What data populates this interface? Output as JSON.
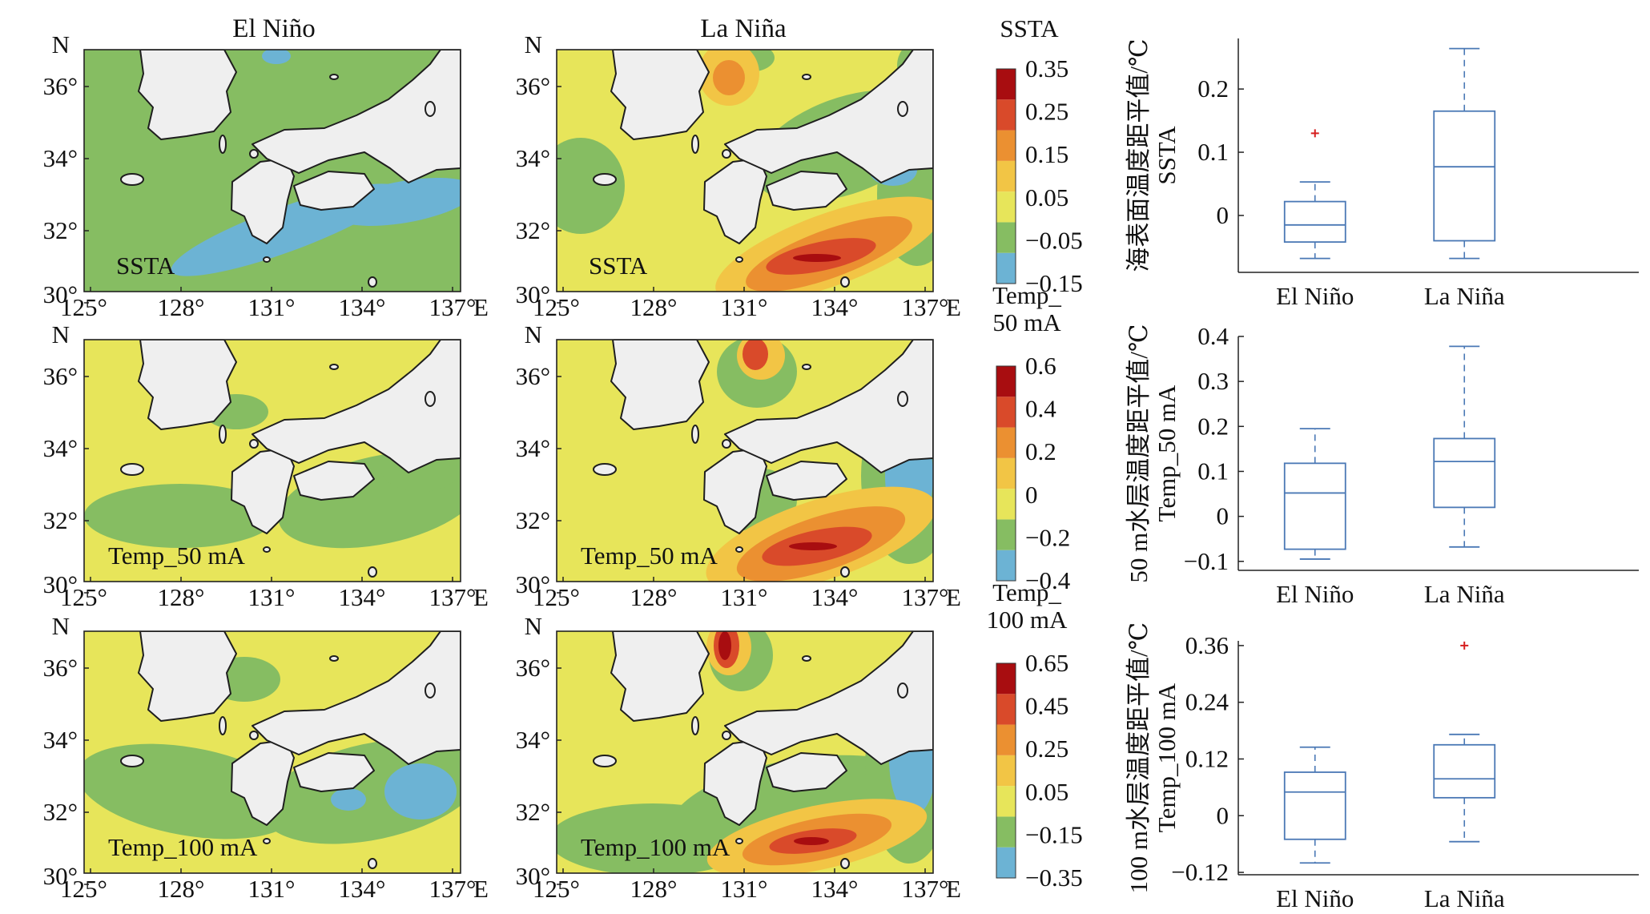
{
  "col_titles": [
    "El Niño",
    "La Niña"
  ],
  "maps": {
    "lon_ticks": [
      "125°",
      "128°",
      "131°",
      "134°",
      "137°"
    ],
    "lon_unit": "E",
    "lat_ticks": [
      "36°",
      "34°",
      "32°",
      "30°"
    ],
    "lat_unit": "N",
    "rows": [
      {
        "label": "SSTA"
      },
      {
        "label": "Temp_50 mA"
      },
      {
        "label": "Temp_100 mA"
      }
    ]
  },
  "colorbars": [
    {
      "title_lines": [
        "SSTA"
      ],
      "ticks": [
        "0.35",
        "0.25",
        "0.15",
        "0.05",
        "−0.05",
        "−0.15"
      ]
    },
    {
      "title_lines": [
        "Temp_",
        "50 mA"
      ],
      "ticks": [
        "0.6",
        "0.4",
        "0.2",
        "0",
        "−0.2",
        "−0.4"
      ]
    },
    {
      "title_lines": [
        "Temp_",
        "100 mA"
      ],
      "ticks": [
        "0.65",
        "0.45",
        "0.25",
        "0.05",
        "−0.15",
        "−0.35"
      ]
    }
  ],
  "colors": {
    "land": "#efefef",
    "palette": [
      "#6cb3d4",
      "#86bd62",
      "#e7e55a",
      "#f2c545",
      "#eb9031",
      "#d94a2a",
      "#a80d10"
    ],
    "box": "#4a78b5",
    "outlier": "#d61f1f"
  },
  "chart_data": [
    {
      "type": "box",
      "ylabel_lines": [
        "海表面温度距平值/℃",
        "SSTA"
      ],
      "categories": [
        "El Niño",
        "La Niña"
      ],
      "y_ticks": [
        "0.2",
        "0.1",
        "0"
      ],
      "ylim": [
        -0.09,
        0.28
      ],
      "series": [
        {
          "name": "El Niño",
          "whisker_low": -0.068,
          "q1": -0.042,
          "median": -0.015,
          "q3": 0.022,
          "whisker_high": 0.053,
          "outliers": [
            0.13
          ]
        },
        {
          "name": "La Niña",
          "whisker_low": -0.068,
          "q1": -0.04,
          "median": 0.077,
          "q3": 0.165,
          "whisker_high": 0.264,
          "outliers": []
        }
      ]
    },
    {
      "type": "box",
      "ylabel_lines": [
        "50 m水层温度距平值/℃",
        "Temp_50 mA"
      ],
      "categories": [
        "El Niño",
        "La Niña"
      ],
      "y_ticks": [
        "0.4",
        "0.3",
        "0.2",
        "0.1",
        "0",
        "−0.1"
      ],
      "ylim": [
        -0.12,
        0.4
      ],
      "series": [
        {
          "name": "El Niño",
          "whisker_low": -0.095,
          "q1": -0.073,
          "median": 0.052,
          "q3": 0.118,
          "whisker_high": 0.195,
          "outliers": []
        },
        {
          "name": "La Niña",
          "whisker_low": -0.068,
          "q1": 0.02,
          "median": 0.122,
          "q3": 0.173,
          "whisker_high": 0.378,
          "outliers": []
        }
      ]
    },
    {
      "type": "box",
      "ylabel_lines": [
        "100 m水层温度距平值/℃",
        "Temp_100 mA"
      ],
      "categories": [
        "El Niño",
        "La Niña"
      ],
      "y_ticks": [
        "0.36",
        "0.24",
        "0.12",
        "0",
        "−0.12"
      ],
      "ylim": [
        -0.125,
        0.37
      ],
      "series": [
        {
          "name": "El Niño",
          "whisker_low": -0.1,
          "q1": -0.05,
          "median": 0.05,
          "q3": 0.092,
          "whisker_high": 0.145,
          "outliers": []
        },
        {
          "name": "La Niña",
          "whisker_low": -0.055,
          "q1": 0.038,
          "median": 0.078,
          "q3": 0.15,
          "whisker_high": 0.172,
          "outliers": [
            0.36
          ]
        }
      ]
    }
  ]
}
